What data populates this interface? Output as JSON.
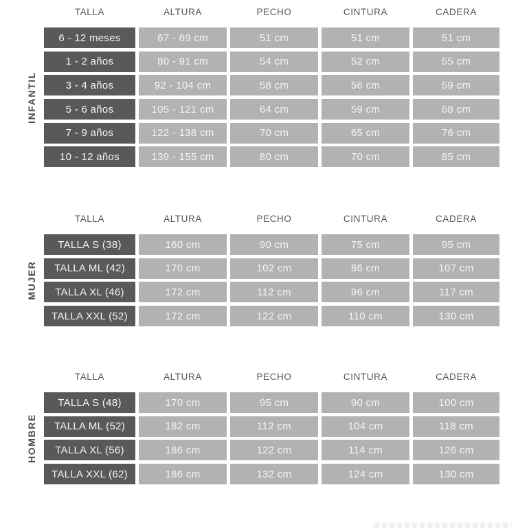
{
  "columns": [
    "TALLA",
    "ALTURA",
    "PECHO",
    "CINTURA",
    "CADERA"
  ],
  "colors": {
    "dark_cell": "#58595b",
    "light_cell": "#b1b2b4",
    "header_text": "#55565a",
    "cell_text": "#f5f5f5"
  },
  "sections": [
    {
      "label": "INFANTIL",
      "rows": [
        [
          "6 - 12 meses",
          "67 - 69 cm",
          "51 cm",
          "51 cm",
          "51 cm"
        ],
        [
          "1 - 2 años",
          "80 - 91 cm",
          "54 cm",
          "52 cm",
          "55 cm"
        ],
        [
          "3 - 4 años",
          "92 - 104 cm",
          "58 cm",
          "56 cm",
          "59 cm"
        ],
        [
          "5 - 6 años",
          "105 - 121 cm",
          "64 cm",
          "59 cm",
          "68 cm"
        ],
        [
          "7 - 9 años",
          "122 - 138 cm",
          "70 cm",
          "65 cm",
          "76 cm"
        ],
        [
          "10 - 12 años",
          "139 - 155 cm",
          "80 cm",
          "70 cm",
          "85 cm"
        ]
      ]
    },
    {
      "label": "MUJER",
      "rows": [
        [
          "TALLA S (38)",
          "160 cm",
          "90 cm",
          "75 cm",
          "95 cm"
        ],
        [
          "TALLA ML (42)",
          "170 cm",
          "102 cm",
          "86 cm",
          "107 cm"
        ],
        [
          "TALLA XL (46)",
          "172 cm",
          "112 cm",
          "96 cm",
          "117 cm"
        ],
        [
          "TALLA XXL (52)",
          "172 cm",
          "122 cm",
          "110 cm",
          "130 cm"
        ]
      ]
    },
    {
      "label": "HOMBRE",
      "rows": [
        [
          "TALLA S (48)",
          "170 cm",
          "95 cm",
          "90 cm",
          "100 cm"
        ],
        [
          "TALLA ML (52)",
          "182 cm",
          "112 cm",
          "104 cm",
          "118 cm"
        ],
        [
          "TALLA XL (56)",
          "186 cm",
          "122 cm",
          "114 cm",
          "126 cm"
        ],
        [
          "TALLA XXL (62)",
          "186 cm",
          "132 cm",
          "124 cm",
          "130 cm"
        ]
      ]
    }
  ]
}
